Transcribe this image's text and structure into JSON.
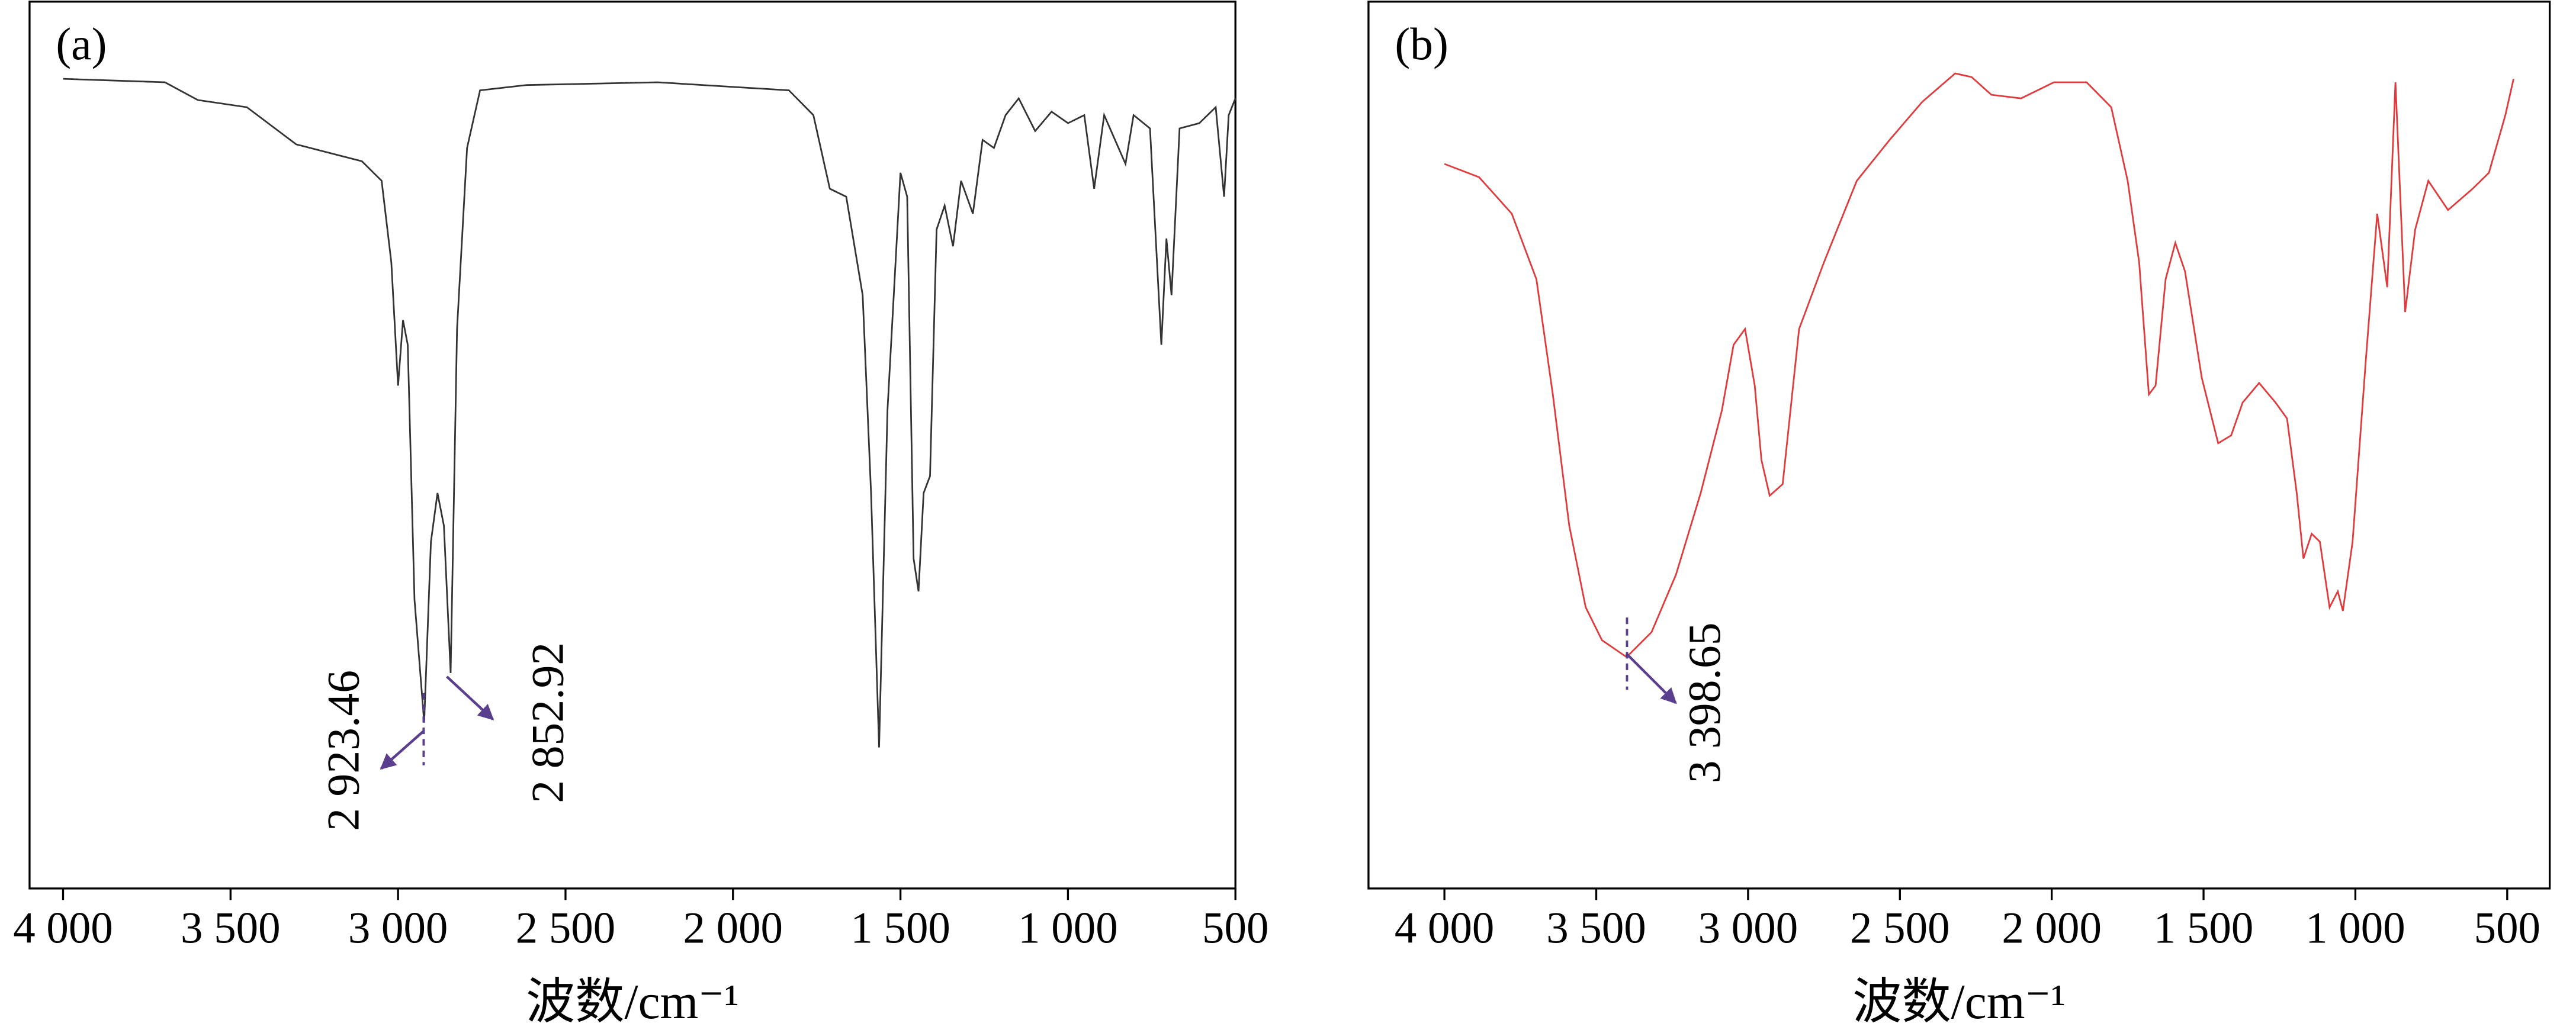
{
  "chart_data": [
    {
      "type": "line",
      "panel_label": "(a)",
      "x_label": "波数/cm⁻¹",
      "color": "#333333",
      "x": [
        4000,
        3696,
        3598,
        3451,
        3304,
        3108,
        3049,
        3020,
        3000,
        2985,
        2971,
        2951,
        2922,
        2902,
        2882,
        2863,
        2843,
        2824,
        2794,
        2755,
        2618,
        2225,
        1833,
        1760,
        1711,
        1662,
        1613,
        1588,
        1564,
        1539,
        1500,
        1480,
        1461,
        1446,
        1431,
        1412,
        1392,
        1368,
        1343,
        1319,
        1284,
        1255,
        1221,
        1186,
        1147,
        1098,
        1049,
        1000,
        951,
        922,
        892,
        828,
        804,
        755,
        721,
        706,
        691,
        667,
        608,
        559,
        534,
        520,
        500
      ],
      "values": [
        91.3,
        90.9,
        88.9,
        88.1,
        83.9,
        82.0,
        79.8,
        70.6,
        56.7,
        64.1,
        61.3,
        32.6,
        18.7,
        39.1,
        44.6,
        40.9,
        24.3,
        63.1,
        83.5,
        90.0,
        90.6,
        90.9,
        90.0,
        87.2,
        78.9,
        78.0,
        66.9,
        44.6,
        15.9,
        53.9,
        80.7,
        78.0,
        37.2,
        33.5,
        44.6,
        46.5,
        74.3,
        77.0,
        72.4,
        79.8,
        76.1,
        84.4,
        83.5,
        87.2,
        89.1,
        85.4,
        87.6,
        86.3,
        87.2,
        78.9,
        87.2,
        81.7,
        87.2,
        85.7,
        61.3,
        73.3,
        66.9,
        85.7,
        86.3,
        88.1,
        78.0,
        87.2,
        89.1
      ],
      "xlim": [
        4100,
        500
      ],
      "ylim": [
        0,
        100
      ],
      "xticks": [
        {
          "value": 4000,
          "label": "4 000"
        },
        {
          "value": 3500,
          "label": "3 500"
        },
        {
          "value": 3000,
          "label": "3 000"
        },
        {
          "value": 2500,
          "label": "2 500"
        },
        {
          "value": 2000,
          "label": "2 000"
        },
        {
          "value": 1500,
          "label": "1 500"
        },
        {
          "value": 1000,
          "label": "1 000"
        },
        500
      ],
      "annotations": [
        {
          "text": "2 923.46",
          "x": 2923.46
        },
        {
          "text": "2 852.92",
          "x": 2852.92
        }
      ]
    },
    {
      "type": "line",
      "panel_label": "(b)",
      "x_label": "波数/cm⁻¹",
      "color": "#e03a3c",
      "x": [
        4000,
        3886,
        3778,
        3697,
        3643,
        3589,
        3535,
        3481,
        3400,
        3318,
        3237,
        3156,
        3086,
        3048,
        3010,
        2978,
        2956,
        2929,
        2886,
        2832,
        2750,
        2642,
        2534,
        2426,
        2318,
        2264,
        2199,
        2101,
        1993,
        1885,
        1804,
        1750,
        1712,
        1680,
        1658,
        1625,
        1593,
        1561,
        1506,
        1452,
        1409,
        1371,
        1317,
        1263,
        1225,
        1193,
        1171,
        1144,
        1117,
        1085,
        1058,
        1041,
        1009,
        966,
        928,
        895,
        868,
        836,
        803,
        760,
        695,
        614,
        560,
        506,
        479
      ],
      "values": [
        81.7,
        80.2,
        76.1,
        68.7,
        55.7,
        40.9,
        31.7,
        28.0,
        26.1,
        28.9,
        35.4,
        44.6,
        53.9,
        61.3,
        63.1,
        56.7,
        48.3,
        44.3,
        45.6,
        63.1,
        70.6,
        79.8,
        84.4,
        88.7,
        91.9,
        91.5,
        89.5,
        89.1,
        90.9,
        90.9,
        88.1,
        79.8,
        70.6,
        55.7,
        56.7,
        68.7,
        72.8,
        69.6,
        57.6,
        50.2,
        51.1,
        54.8,
        57.0,
        54.8,
        53.0,
        44.6,
        37.2,
        40.0,
        39.1,
        31.7,
        33.5,
        31.3,
        39.1,
        59.4,
        76.1,
        67.8,
        90.9,
        65.0,
        74.3,
        79.8,
        76.5,
        78.9,
        80.7,
        87.2,
        91.3
      ],
      "xlim": [
        4250,
        360
      ],
      "ylim": [
        0,
        100
      ],
      "xticks": [
        {
          "value": 4000,
          "label": "4 000"
        },
        {
          "value": 3500,
          "label": "3 500"
        },
        {
          "value": 3000,
          "label": "3 000"
        },
        {
          "value": 2500,
          "label": "2 500"
        },
        {
          "value": 2000,
          "label": "2 000"
        },
        {
          "value": 1500,
          "label": "1 500"
        },
        {
          "value": 1000,
          "label": "1 000"
        },
        500
      ],
      "annotations": [
        {
          "text": "3 398.65",
          "x": 3398.65
        }
      ]
    }
  ]
}
